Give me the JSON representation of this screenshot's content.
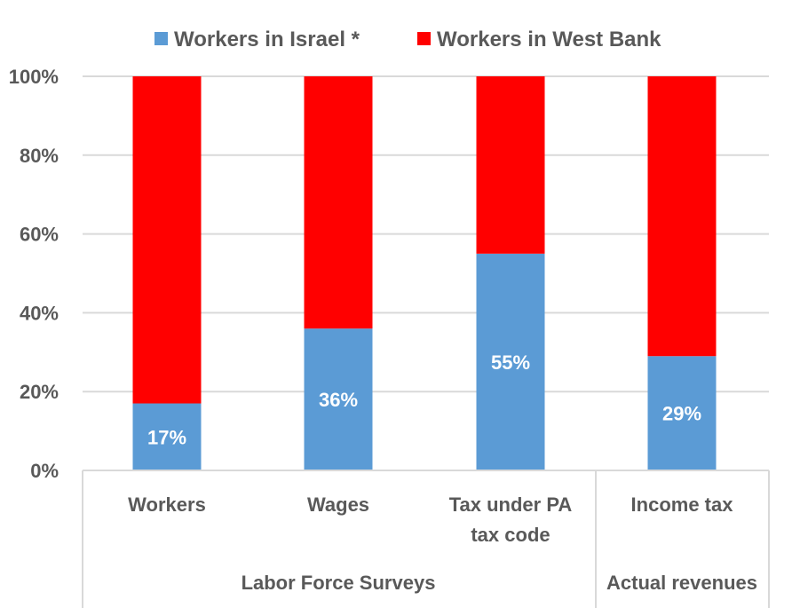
{
  "chart_data": {
    "type": "bar",
    "stacked": true,
    "categories": [
      "Workers",
      "Wages",
      "Tax under PA tax code",
      "Income tax"
    ],
    "category_lines": [
      [
        "Workers"
      ],
      [
        "Wages"
      ],
      [
        "Tax under PA",
        "tax code"
      ],
      [
        "Income tax"
      ]
    ],
    "groups": [
      {
        "label": "Labor Force Surveys",
        "categories": [
          0,
          1,
          2
        ]
      },
      {
        "label": "Actual revenues",
        "categories": [
          3
        ]
      }
    ],
    "series": [
      {
        "name": "Workers in Israel *",
        "color": "#5b9bd5",
        "values": [
          17,
          36,
          55,
          29
        ],
        "labels": [
          "17%",
          "36%",
          "55%",
          "29%"
        ]
      },
      {
        "name": "Workers in West Bank",
        "color": "#ff0000",
        "values": [
          83,
          64,
          45,
          71
        ]
      }
    ],
    "ylim": [
      0,
      100
    ],
    "yticks": [
      "0%",
      "20%",
      "40%",
      "60%",
      "80%",
      "100%"
    ],
    "ytick_values": [
      0,
      20,
      40,
      60,
      80,
      100
    ],
    "legend_position": "top",
    "grid": true,
    "gridline_color": "#d9d9d9"
  }
}
